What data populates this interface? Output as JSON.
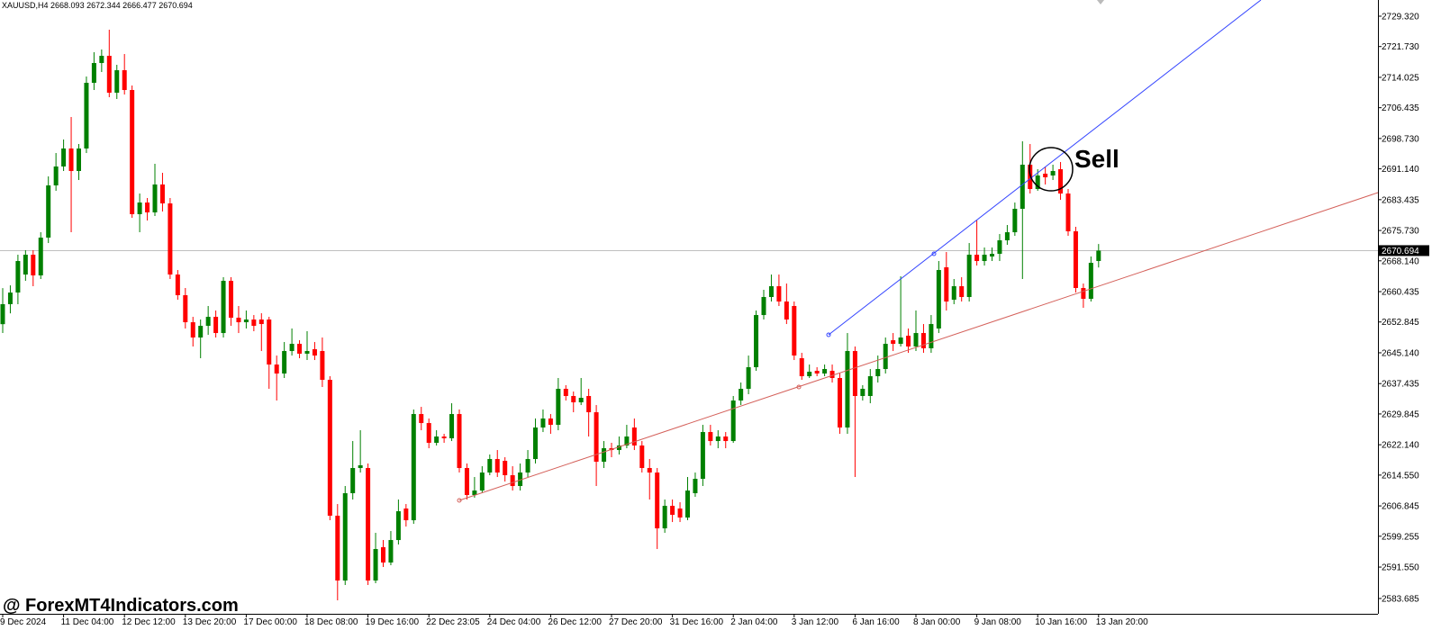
{
  "chart_data": {
    "type": "candlestick",
    "symbol": "XAUUSD,H4",
    "annotation": "Sell",
    "watermark": "@ ForexMT4Indicators.com",
    "up_color": "#008000",
    "down_color": "#ff0000",
    "ylim": [
      2579.86,
      2733.37
    ],
    "yticks": [
      {
        "value": 2729.32,
        "label": "2729.320"
      },
      {
        "value": 2721.73,
        "label": "2721.730"
      },
      2714.025,
      2706.435,
      {
        "value": 2698.73,
        "label": "2698.730"
      },
      {
        "value": 2691.14,
        "label": "2691.140"
      },
      2683.435,
      {
        "value": 2675.73,
        "label": "2675.730"
      },
      {
        "value": 2668.14,
        "label": "2668.140"
      },
      2660.435,
      2652.845,
      {
        "value": 2645.14,
        "label": "2645.140"
      },
      2637.435,
      2629.845,
      {
        "value": 2622.14,
        "label": "2622.140"
      },
      {
        "value": 2614.55,
        "label": "2614.550"
      },
      2606.845,
      2599.255,
      {
        "value": 2591.55,
        "label": "2591.550"
      },
      2583.685
    ],
    "categories": [
      "9 Dec 2024",
      null,
      null,
      null,
      null,
      null,
      null,
      null,
      "11 Dec 04:00",
      null,
      null,
      null,
      null,
      null,
      null,
      null,
      "12 Dec 12:00",
      null,
      null,
      null,
      null,
      null,
      null,
      null,
      "13 Dec 20:00",
      null,
      null,
      null,
      null,
      null,
      null,
      null,
      "17 Dec 00:00",
      null,
      null,
      null,
      null,
      null,
      null,
      null,
      "18 Dec 08:00",
      null,
      null,
      null,
      null,
      null,
      null,
      null,
      "19 Dec 16:00",
      null,
      null,
      null,
      null,
      null,
      null,
      null,
      "22 Dec 23:05",
      null,
      null,
      null,
      null,
      null,
      null,
      null,
      "24 Dec 04:00",
      null,
      null,
      null,
      null,
      null,
      null,
      null,
      "26 Dec 12:00",
      null,
      null,
      null,
      null,
      null,
      null,
      null,
      "27 Dec 20:00",
      null,
      null,
      null,
      null,
      null,
      null,
      null,
      "31 Dec 16:00",
      null,
      null,
      null,
      null,
      null,
      null,
      null,
      "2 Jan 04:00",
      null,
      null,
      null,
      null,
      null,
      null,
      null,
      "3 Jan 12:00",
      null,
      null,
      null,
      null,
      null,
      null,
      null,
      "6 Jan 16:00",
      null,
      null,
      null,
      null,
      null,
      null,
      null,
      "8 Jan 00:00",
      null,
      null,
      null,
      null,
      null,
      null,
      null,
      "9 Jan 08:00",
      null,
      null,
      null,
      null,
      null,
      null,
      null,
      "10 Jan 16:00",
      null,
      null,
      null,
      null,
      null,
      null,
      null,
      "13 Jan 20:00"
    ],
    "open": [
      2652.3,
      2657.3,
      2660.21,
      2664.71,
      2669.67,
      2664.49,
      2673.94,
      2687.0,
      2691.73,
      2696.23,
      2690.6,
      2696.23,
      2712.66,
      2717.61,
      2719.41,
      2710.18,
      2715.81,
      2710.86,
      2679.8,
      2682.72,
      2680.25,
      2687.23,
      2682.5,
      2664.71,
      2659.54,
      2652.78,
      2648.96,
      2651.88,
      2654.13,
      2650.08,
      2663.14,
      2653.91,
      2652.78,
      2653.46,
      2653.46,
      2653.46,
      2642.2,
      2639.95,
      2645.58,
      2647.38,
      2644.91,
      2646.03,
      2645.58,
      2638.38,
      2604.39,
      2588.18,
      2610.02,
      2616.32,
      2616.32,
      2588.18,
      2596.51,
      2592.68,
      2598.31,
      2606.19,
      2603.26,
      2629.82,
      2627.57,
      2622.62,
      2624.2,
      2623.75,
      2629.82,
      2616.32,
      2609.57,
      2610.69,
      2615.19,
      2618.57,
      2618.12,
      2614.52,
      2611.82,
      2615.19,
      2618.57,
      2626.45,
      2628.7,
      2627.12,
      2636.13,
      2634.33,
      2632.75,
      2634.33,
      2630.27,
      2617.89,
      2621.27,
      2620.82,
      2621.95,
      2626.45,
      2621.95,
      2616.32,
      2615.19,
      2601.23,
      2606.86,
      2606.19,
      2603.93,
      2610.02,
      2613.62,
      2625.32,
      2623.07,
      2624.2,
      2623.07,
      2633.2,
      2636.13,
      2641.53,
      2654.58,
      2659.09,
      2661.79,
      2657.96,
      2656.84,
      2643.78,
      2639.28,
      2640.63,
      2639.95,
      2640.63,
      2638.83,
      2626.45,
      2645.58,
      2634.33,
      2634.33,
      2639.28,
      2641.08,
      2648.28,
      2647.38,
      2649.41,
      2646.71,
      2650.08,
      2646.26,
      2651.21,
      2666.52,
      2658.41,
      2661.79,
      2659.09,
      2669.67,
      2668.09,
      2669.22,
      2669.89,
      2673.27,
      2675.29,
      2681.15,
      2692.18,
      2686.1,
      2689.93,
      2689.48,
      2691.05,
      2684.97,
      2675.52,
      2661.34,
      2658.64,
      2668.093
    ],
    "high": [
      2661.3,
      2662.0,
      2669.67,
      2670.79,
      2670.79,
      2675.29,
      2689.25,
      2695.1,
      2698.48,
      2704.11,
      2697.35,
      2714.24,
      2720.31,
      2720.99,
      2725.94,
      2717.16,
      2719.86,
      2711.99,
      2684.97,
      2683.85,
      2692.4,
      2690.15,
      2683.85,
      2665.84,
      2661.34,
      2654.13,
      2653.46,
      2656.84,
      2655.71,
      2664.04,
      2664.04,
      2656.84,
      2655.71,
      2654.58,
      2655.03,
      2654.13,
      2644.45,
      2647.83,
      2651.21,
      2648.28,
      2650.53,
      2647.83,
      2648.96,
      2639.28,
      2607.31,
      2611.82,
      2623.07,
      2625.77,
      2617.45,
      2600.11,
      2598.31,
      2600.56,
      2608.44,
      2607.31,
      2630.95,
      2631.62,
      2628.7,
      2625.77,
      2624.87,
      2632.52,
      2630.95,
      2617.45,
      2614.07,
      2616.77,
      2619.7,
      2620.82,
      2619.02,
      2616.77,
      2617.45,
      2620.82,
      2628.7,
      2630.95,
      2629.82,
      2638.83,
      2637.03,
      2635.45,
      2638.83,
      2636.13,
      2632.07,
      2623.07,
      2622.62,
      2624.2,
      2627.12,
      2628.7,
      2623.07,
      2618.57,
      2616.32,
      2608.44,
      2608.44,
      2607.76,
      2614.07,
      2615.19,
      2627.12,
      2627.12,
      2625.77,
      2625.32,
      2634.33,
      2637.7,
      2644.45,
      2655.71,
      2660.89,
      2664.71,
      2664.71,
      2662.46,
      2657.96,
      2645.13,
      2642.2,
      2641.53,
      2642.2,
      2642.2,
      2639.95,
      2650.08,
      2646.71,
      2637.03,
      2641.08,
      2644.45,
      2648.96,
      2650.08,
      2664.26,
      2651.21,
      2655.71,
      2652.33,
      2654.58,
      2668.09,
      2670.34,
      2663.59,
      2664.04,
      2672.59,
      2678.22,
      2671.47,
      2671.47,
      2674.84,
      2677.1,
      2682.72,
      2698.03,
      2697.35,
      2691.05,
      2691.73,
      2692.18,
      2692.85,
      2686.1,
      2676.65,
      2662.46,
      2669.22,
      2672.344
    ],
    "low": [
      2650.1,
      2655.0,
      2657.29,
      2663.14,
      2661.79,
      2663.59,
      2672.59,
      2685.65,
      2690.6,
      2675.29,
      2688.35,
      2695.1,
      2710.86,
      2715.36,
      2709.06,
      2708.61,
      2709.73,
      2678.9,
      2675.29,
      2678.22,
      2679.35,
      2680.47,
      2663.59,
      2658.41,
      2651.21,
      2646.71,
      2643.78,
      2649.63,
      2648.96,
      2648.96,
      2651.88,
      2650.08,
      2651.21,
      2650.53,
      2645.58,
      2636.13,
      2633.2,
      2638.83,
      2644.45,
      2643.78,
      2643.33,
      2643.33,
      2636.58,
      2603.26,
      2583.23,
      2587.06,
      2608.44,
      2615.19,
      2587.06,
      2587.51,
      2591.56,
      2592.01,
      2597.19,
      2601.68,
      2602.36,
      2625.77,
      2621.27,
      2621.95,
      2622.62,
      2623.07,
      2615.19,
      2608.44,
      2608.89,
      2610.02,
      2614.52,
      2614.07,
      2612.94,
      2610.69,
      2610.69,
      2614.07,
      2617.45,
      2625.32,
      2624.87,
      2625.77,
      2633.2,
      2630.27,
      2632.07,
      2624.2,
      2611.82,
      2616.32,
      2619.02,
      2619.7,
      2621.27,
      2620.82,
      2615.19,
      2608.44,
      2596.06,
      2600.11,
      2602.81,
      2602.81,
      2603.26,
      2609.12,
      2611.82,
      2621.95,
      2621.27,
      2621.27,
      2622.62,
      2632.07,
      2634.78,
      2640.63,
      2653.46,
      2657.96,
      2656.84,
      2652.33,
      2643.33,
      2638.38,
      2638.83,
      2639.28,
      2639.28,
      2637.7,
      2624.87,
      2624.87,
      2614.07,
      2633.2,
      2632.52,
      2637.7,
      2639.95,
      2645.58,
      2646.71,
      2645.13,
      2645.58,
      2645.13,
      2645.13,
      2650.08,
      2655.71,
      2657.29,
      2657.96,
      2657.96,
      2666.96,
      2666.96,
      2668.09,
      2668.09,
      2672.14,
      2674.39,
      2663.59,
      2684.97,
      2685.65,
      2687.23,
      2688.35,
      2683.4,
      2674.39,
      2660.21,
      2656.39,
      2657.96,
      2666.477
    ],
    "close": [
      2657.3,
      2660.2,
      2668.09,
      2669.67,
      2664.49,
      2673.94,
      2687.0,
      2691.73,
      2696.23,
      2690.6,
      2696.23,
      2712.66,
      2717.61,
      2719.41,
      2710.18,
      2715.81,
      2710.86,
      2679.8,
      2682.72,
      2680.25,
      2687.23,
      2682.5,
      2664.71,
      2659.54,
      2652.78,
      2648.96,
      2651.88,
      2654.13,
      2650.08,
      2663.14,
      2653.91,
      2652.78,
      2653.46,
      2651.88,
      2652.33,
      2642.2,
      2639.95,
      2645.58,
      2647.38,
      2644.91,
      2645.58,
      2644.45,
      2638.38,
      2604.39,
      2588.18,
      2610.02,
      2616.32,
      2617.0,
      2588.18,
      2596.06,
      2592.68,
      2598.31,
      2605.51,
      2603.26,
      2629.82,
      2627.57,
      2622.62,
      2624.2,
      2623.75,
      2629.82,
      2616.32,
      2609.57,
      2610.69,
      2615.19,
      2618.57,
      2615.19,
      2614.52,
      2611.82,
      2615.19,
      2618.57,
      2626.45,
      2628.7,
      2627.12,
      2636.13,
      2634.33,
      2632.75,
      2633.88,
      2630.27,
      2617.89,
      2621.27,
      2620.82,
      2621.95,
      2624.2,
      2621.95,
      2616.32,
      2615.19,
      2601.23,
      2606.86,
      2604.61,
      2603.93,
      2610.69,
      2613.62,
      2625.32,
      2623.07,
      2624.2,
      2623.07,
      2633.2,
      2636.13,
      2641.53,
      2654.58,
      2659.09,
      2661.79,
      2657.96,
      2653.46,
      2644.45,
      2639.28,
      2640.4,
      2639.95,
      2641.08,
      2638.83,
      2626.45,
      2645.58,
      2634.33,
      2636.13,
      2639.28,
      2641.08,
      2647.38,
      2647.38,
      2648.96,
      2646.71,
      2650.08,
      2646.26,
      2652.33,
      2665.84,
      2657.96,
      2661.79,
      2659.09,
      2669.67,
      2668.09,
      2669.67,
      2669.89,
      2673.27,
      2675.29,
      2681.15,
      2692.18,
      2686.1,
      2689.48,
      2689.03,
      2690.6,
      2684.97,
      2675.52,
      2661.34,
      2658.64,
      2667.64,
      2670.694
    ]
  }
}
